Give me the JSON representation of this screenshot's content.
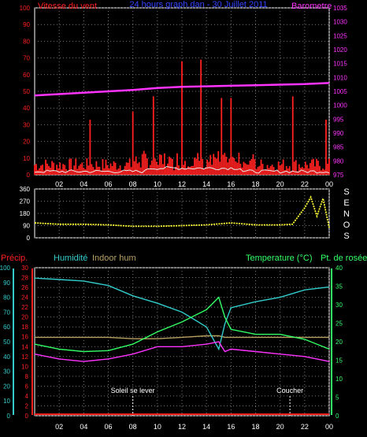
{
  "title": "24 hours graph.dan - 30 Juillet 2011",
  "colors": {
    "wind": "#ff2020",
    "gust": "#ff2020",
    "avg_wind": "#e8e8e8",
    "baro": "#ff33ff",
    "dir": "#ffff33",
    "precip": "#ff2020",
    "humidity": "#33cccc",
    "indoor_hum": "#b8a060",
    "temperature": "#33ff66",
    "dewpoint": "#ff33ff",
    "grid": "#777777",
    "axis": "#ffffff"
  },
  "x_ticks": [
    "02",
    "04",
    "06",
    "08",
    "10",
    "12",
    "14",
    "16",
    "18",
    "20",
    "22",
    "00"
  ],
  "chart_data": [
    {
      "type": "line",
      "title": "24 hours graph.dan - 30 Juillet 2011",
      "left_label": "Vitesse du vent",
      "right_label": "Barometre",
      "y_left_ticks": [
        "0",
        "10",
        "20",
        "30",
        "40",
        "50",
        "60",
        "70",
        "80",
        "90",
        "100"
      ],
      "y_right_ticks": [
        "975",
        "980",
        "985",
        "990",
        "995",
        "1000",
        "1005",
        "1010",
        "1015",
        "1020",
        "1025",
        "1030",
        "1035"
      ],
      "ylim_left": [
        0,
        100
      ],
      "ylim_right": [
        975,
        1035
      ],
      "x": [
        0,
        2,
        4,
        6,
        8,
        10,
        12,
        14,
        16,
        18,
        20,
        22,
        24
      ],
      "series": [
        {
          "axis": "right",
          "values": [
            1003.5,
            1004.0,
            1004.5,
            1005.0,
            1005.5,
            1006.2,
            1006.6,
            1006.8,
            1007.0,
            1007.2,
            1007.4,
            1007.6,
            1008.0
          ]
        }
      ],
      "wind_gust_peaks": [
        {
          "x": 4.5,
          "y": 33
        },
        {
          "x": 8.0,
          "y": 38
        },
        {
          "x": 9.7,
          "y": 47
        },
        {
          "x": 12.0,
          "y": 68
        },
        {
          "x": 13.5,
          "y": 69
        },
        {
          "x": 15.2,
          "y": 46
        },
        {
          "x": 16.0,
          "y": 46
        },
        {
          "x": 21.0,
          "y": 47
        },
        {
          "x": 23.7,
          "y": 33
        }
      ]
    },
    {
      "type": "scatter",
      "right_label": "SENOS",
      "y_ticks": [
        "0",
        "90",
        "180",
        "270",
        "360"
      ],
      "ylim": [
        0,
        360
      ],
      "x": [
        0,
        2,
        4,
        6,
        8,
        10,
        12,
        14,
        16,
        18,
        20,
        21,
        22,
        22.5,
        23,
        23.5,
        24
      ],
      "series": [
        {
          "values": [
            110,
            100,
            100,
            95,
            85,
            85,
            90,
            95,
            110,
            95,
            95,
            100,
            220,
            300,
            160,
            290,
            75
          ]
        }
      ]
    },
    {
      "type": "line",
      "labels": {
        "precip": "Précip.",
        "humidity": "Humidité",
        "indoor": "Indoor hum",
        "temperature": "Temperature (°C)",
        "dewpoint": "Pt. de rosée"
      },
      "y_humidity_ticks": [
        "0",
        "10",
        "20",
        "30",
        "40",
        "50",
        "60",
        "70",
        "80",
        "90",
        "100"
      ],
      "y_temp_ticks": [
        "0",
        "2",
        "4",
        "6",
        "8",
        "10",
        "12",
        "14",
        "16",
        "18",
        "20",
        "22",
        "24",
        "26",
        "28",
        "30"
      ],
      "y_right_ticks": [
        "0",
        "5",
        "10",
        "15",
        "20",
        "25",
        "30",
        "35",
        "40"
      ],
      "ylim_humidity": [
        0,
        100
      ],
      "ylim_temp": [
        0,
        30
      ],
      "ylim_right": [
        0,
        40
      ],
      "x": [
        0,
        2,
        4,
        6,
        8,
        10,
        12,
        14,
        15,
        15.5,
        16,
        18,
        20,
        22,
        24
      ],
      "series": [
        {
          "key": "humidity",
          "values": [
            93,
            92,
            91,
            88,
            81,
            76,
            70,
            60,
            45,
            62,
            73,
            77,
            80,
            85,
            87
          ]
        },
        {
          "key": "indoor",
          "values": [
            53,
            53,
            53,
            53,
            52,
            52,
            53,
            54,
            54,
            53,
            53,
            53,
            53,
            53,
            53
          ]
        },
        {
          "key": "temperature",
          "values": [
            14.5,
            13.5,
            13.0,
            13.2,
            14.5,
            17.0,
            19.0,
            21.5,
            24.0,
            20.0,
            17.5,
            16.5,
            16.5,
            15.5,
            13.5
          ]
        },
        {
          "key": "dewpoint",
          "values": [
            12.5,
            11.5,
            11.0,
            11.5,
            12.5,
            14.0,
            14.0,
            14.5,
            15.0,
            13.0,
            13.5,
            13.0,
            12.5,
            12.0,
            11.0
          ]
        },
        {
          "key": "precip",
          "values": [
            0.3,
            0.3,
            0.3,
            0.3,
            0.3,
            0.3,
            0.3,
            0.3,
            0.3,
            0.3,
            0.3,
            0.3,
            0.3,
            0.3,
            0.3
          ]
        }
      ],
      "annotations": [
        {
          "text": "Soleil se lever",
          "x": 8.0
        },
        {
          "text": "Coucher",
          "x": 20.8
        }
      ]
    }
  ]
}
